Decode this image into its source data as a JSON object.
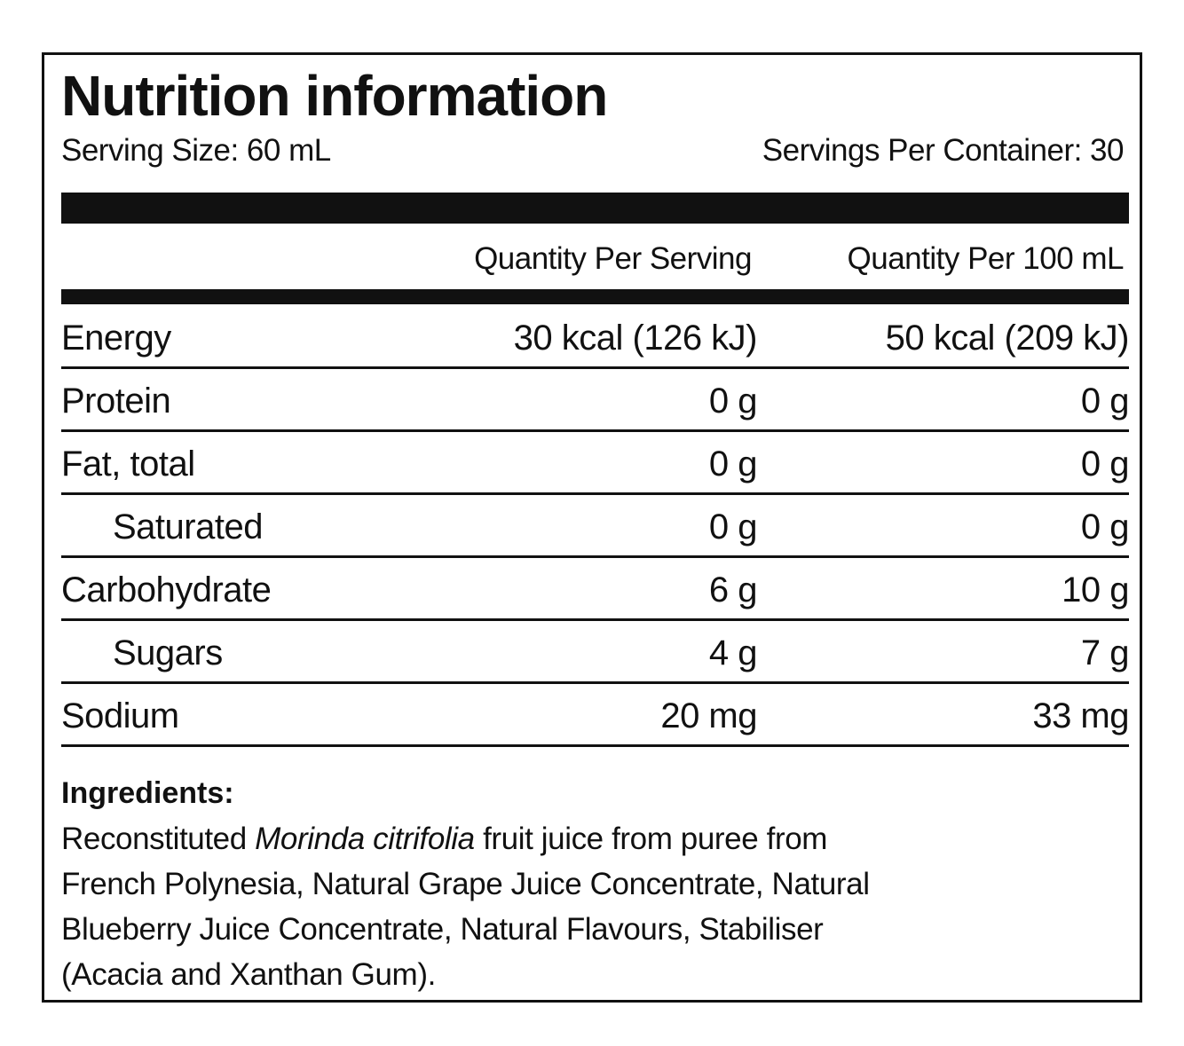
{
  "title": "Nutrition information",
  "serving_size": "Serving Size: 60 mL",
  "servings_per_container": "Servings Per Container: 30",
  "columns": [
    "Quantity Per Serving",
    "Quantity Per 100 mL"
  ],
  "rows": [
    {
      "label": "Energy",
      "per_serving": "30 kcal (126 kJ)",
      "per_100ml": "50 kcal (209 kJ)"
    },
    {
      "label": "Protein",
      "per_serving": "0 g",
      "per_100ml": "0 g"
    },
    {
      "label": "Fat, total",
      "per_serving": "0 g",
      "per_100ml": "0 g"
    },
    {
      "label": "Saturated",
      "per_serving": "0 g",
      "per_100ml": "0 g"
    },
    {
      "label": "Carbohydrate",
      "per_serving": "6 g",
      "per_100ml": "10 g"
    },
    {
      "label": "Sugars",
      "per_serving": "4 g",
      "per_100ml": "7 g"
    },
    {
      "label": "Sodium",
      "per_serving": "20 mg",
      "per_100ml": "33 mg"
    }
  ],
  "ingredients": {
    "heading": "Ingredients:",
    "text_before": "Reconstituted ",
    "text_italic": "Morinda citrifolia",
    "text_after": " fruit juice from puree from French Polynesia, Natural Grape Juice Concentrate, Natural Blueberry Juice Concentrate, Natural Flavours, Stabiliser (Acacia and Xanthan Gum)."
  }
}
